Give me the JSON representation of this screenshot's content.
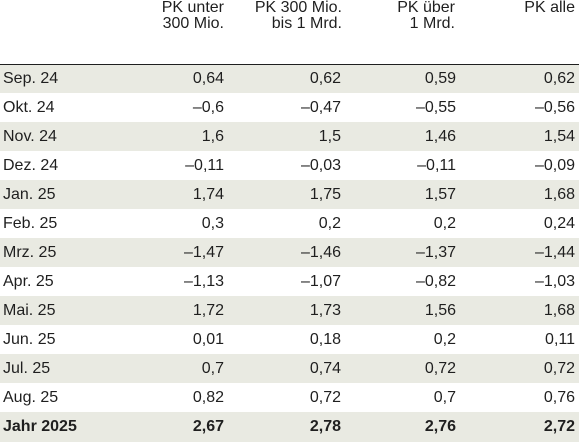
{
  "columns": [
    "",
    [
      "PK unter",
      "300 Mio."
    ],
    [
      "PK 300 Mio.",
      "bis 1 Mrd."
    ],
    [
      "PK über",
      "1 Mrd."
    ],
    [
      "PK alle"
    ]
  ],
  "rows": [
    {
      "label": "Sep. 24",
      "values": [
        "0,64",
        "0,62",
        "0,59",
        "0,62"
      ]
    },
    {
      "label": "Okt. 24",
      "values": [
        "–0,6",
        "–0,47",
        "–0,55",
        "–0,56"
      ]
    },
    {
      "label": "Nov. 24",
      "values": [
        "1,6",
        "1,5",
        "1,46",
        "1,54"
      ]
    },
    {
      "label": "Dez. 24",
      "values": [
        "–0,11",
        "–0,03",
        "–0,11",
        "–0,09"
      ]
    },
    {
      "label": "Jan. 25",
      "values": [
        "1,74",
        "1,75",
        "1,57",
        "1,68"
      ]
    },
    {
      "label": "Feb. 25",
      "values": [
        "0,3",
        "0,2",
        "0,2",
        "0,24"
      ]
    },
    {
      "label": "Mrz. 25",
      "values": [
        "–1,47",
        "–1,46",
        "–1,37",
        "–1,44"
      ]
    },
    {
      "label": "Apr. 25",
      "values": [
        "–1,13",
        "–1,07",
        "–0,82",
        "–1,03"
      ]
    },
    {
      "label": "Mai. 25",
      "values": [
        "1,72",
        "1,73",
        "1,56",
        "1,68"
      ]
    },
    {
      "label": "Jun. 25",
      "values": [
        "0,01",
        "0,18",
        "0,2",
        "0,11"
      ]
    },
    {
      "label": "Jul. 25",
      "values": [
        "0,7",
        "0,74",
        "0,72",
        "0,72"
      ]
    },
    {
      "label": "Aug. 25",
      "values": [
        "0,82",
        "0,72",
        "0,7",
        "0,76"
      ]
    }
  ],
  "total": {
    "label": "Jahr 2025",
    "values": [
      "2,67",
      "2,78",
      "2,76",
      "2,72"
    ]
  },
  "colors": {
    "row_shade": "#e9eae2",
    "text": "#1f1f1f",
    "rule": "#1f1f1f"
  }
}
